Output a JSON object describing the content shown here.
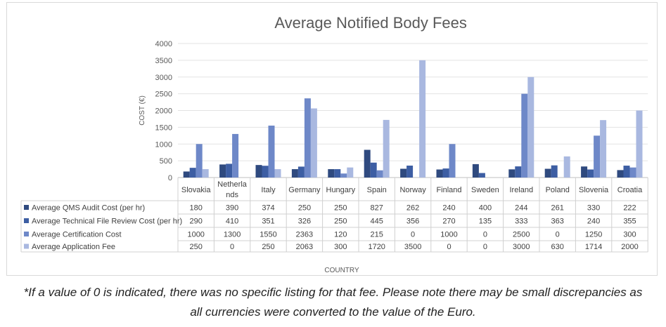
{
  "chart_data": {
    "type": "bar",
    "title": "Average Notified Body Fees",
    "xlabel": "COUNTRY",
    "ylabel": "COST (€)",
    "ylim": [
      0,
      4000
    ],
    "yticks": [
      "0",
      "500",
      "1000",
      "1500",
      "2000",
      "2500",
      "3000",
      "3500",
      "4000"
    ],
    "grid": true,
    "legend": "data-table",
    "categories": [
      "Slovakia",
      "Netherlands",
      "Italy",
      "Germany",
      "Hungary",
      "Spain",
      "Norway",
      "Finland",
      "Sweden",
      "Ireland",
      "Poland",
      "Slovenia",
      "Croatia"
    ],
    "category_lines": [
      [
        "Slovakia"
      ],
      [
        "Netherla",
        "nds"
      ],
      [
        "Italy"
      ],
      [
        "Germany"
      ],
      [
        "Hungary"
      ],
      [
        "Spain"
      ],
      [
        "Norway"
      ],
      [
        "Finland"
      ],
      [
        "Sweden"
      ],
      [
        "Ireland"
      ],
      [
        "Poland"
      ],
      [
        "Slovenia"
      ],
      [
        "Croatia"
      ]
    ],
    "series": [
      {
        "name": "Average QMS Audit Cost (per hr)",
        "color": "#2f4a7f",
        "values": [
          180,
          390,
          374,
          250,
          250,
          827,
          262,
          240,
          400,
          244,
          261,
          330,
          222
        ]
      },
      {
        "name": "Average Technical File Review Cost (per hr)",
        "color": "#3d5ea3",
        "values": [
          290,
          410,
          351,
          326,
          250,
          445,
          356,
          270,
          135,
          333,
          363,
          240,
          355
        ]
      },
      {
        "name": "Average Certification Cost",
        "color": "#6e88c8",
        "values": [
          1000,
          1300,
          1550,
          2363,
          120,
          215,
          0,
          1000,
          0,
          2500,
          0,
          1250,
          300
        ]
      },
      {
        "name": "Average Application Fee",
        "color": "#a9b8e0",
        "values": [
          250,
          0,
          250,
          2063,
          300,
          1720,
          3500,
          0,
          0,
          3000,
          630,
          1714,
          2000
        ]
      }
    ]
  },
  "footnote": {
    "line1": "*If a value of 0 is indicated, there was no specific listing for that fee. Please note there may be small discrepancies as",
    "line2": "all currencies were converted to the value of the Euro."
  }
}
